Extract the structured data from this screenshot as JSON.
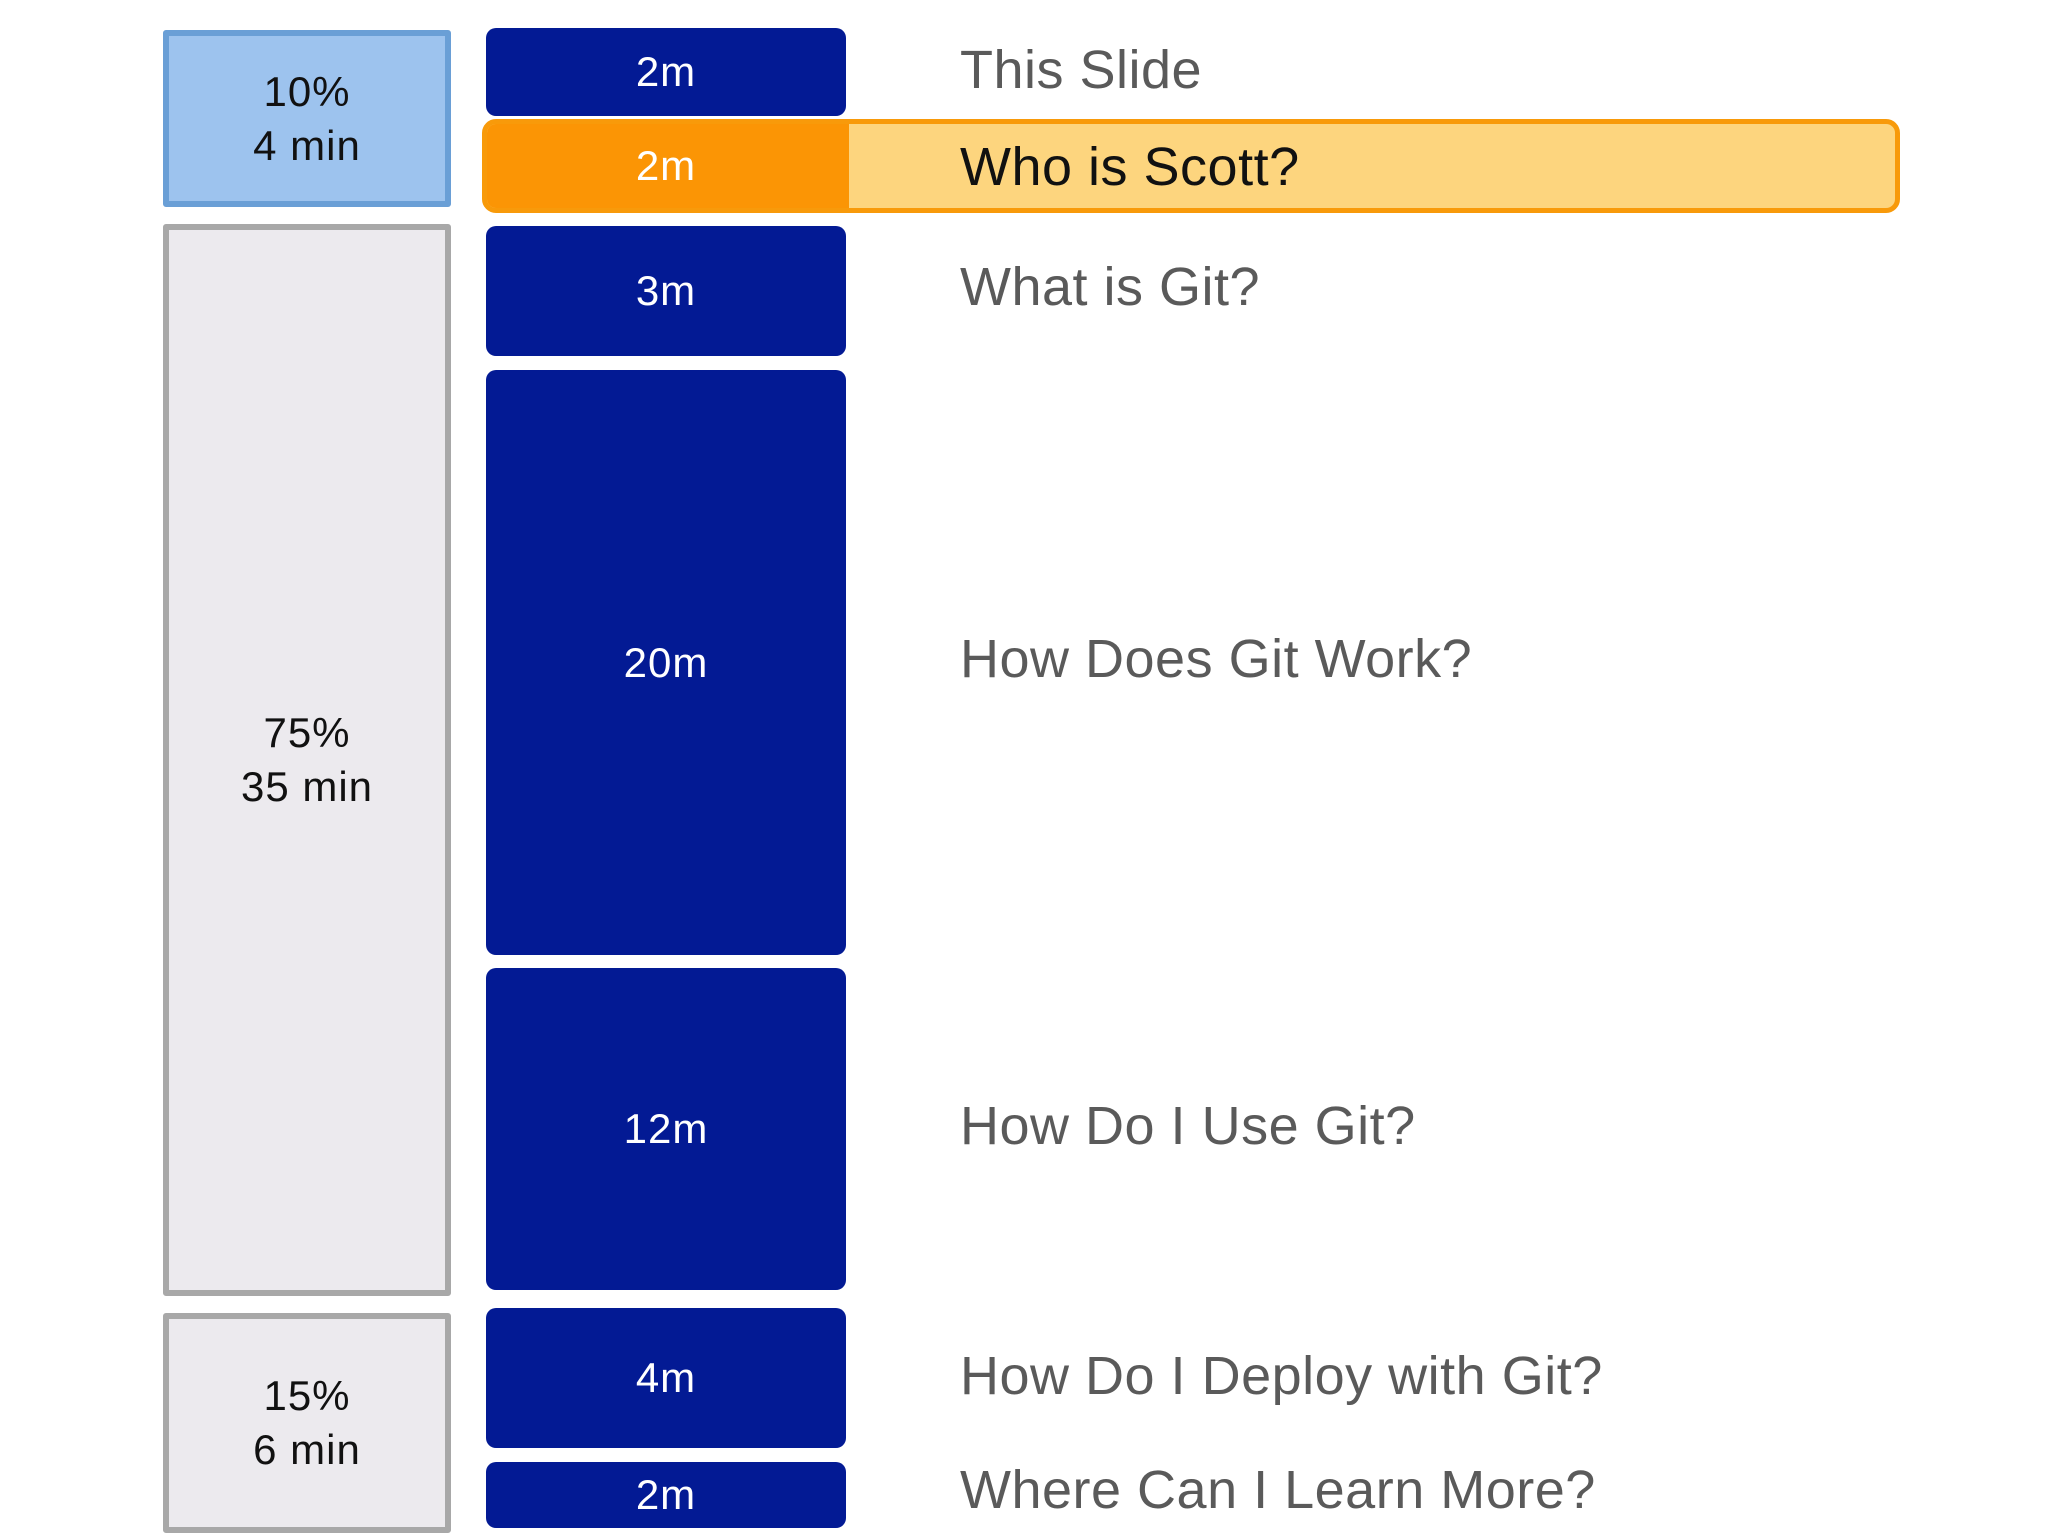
{
  "sections": [
    {
      "percent": "10%",
      "duration": "4 min"
    },
    {
      "percent": "75%",
      "duration": "35 min"
    },
    {
      "percent": "15%",
      "duration": "6 min"
    }
  ],
  "agenda": [
    {
      "duration": "2m",
      "topic": "This Slide"
    },
    {
      "duration": "2m",
      "topic": "Who is Scott?"
    },
    {
      "duration": "3m",
      "topic": "What is Git?"
    },
    {
      "duration": "20m",
      "topic": "How Does Git Work?"
    },
    {
      "duration": "12m",
      "topic": "How Do I Use Git?"
    },
    {
      "duration": "4m",
      "topic": "How Do I Deploy with Git?"
    },
    {
      "duration": "2m",
      "topic": "Where Can I Learn More?"
    }
  ],
  "current_item": "Who is Scott?",
  "colors": {
    "block": "#031a94",
    "current_block": "#fb9505",
    "current_row": "#fdd57e",
    "current_section": "#9dc3ee"
  }
}
